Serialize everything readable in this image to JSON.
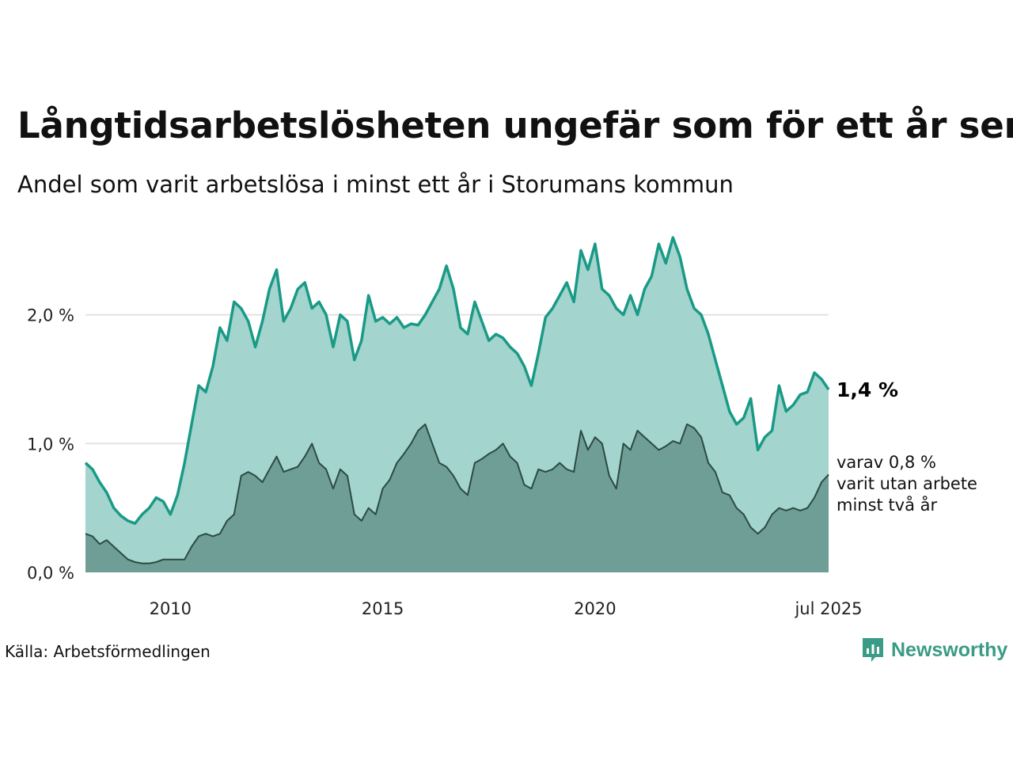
{
  "title": "Långtidsarbetslösheten ungefär som för ett år sen",
  "subtitle": "Andel som varit arbetslösa i minst ett år i Storumans kommun",
  "source": "Källa: Arbetsförmedlingen",
  "brand": {
    "name": "Newsworthy",
    "icon": "newsworthy-logo-icon"
  },
  "colors": {
    "main_line": "#1a9a86",
    "main_fill": "#a3d4ce",
    "sub_line": "#2c4a44",
    "sub_fill": "#6f9e96",
    "grid": "#e2e2e2"
  },
  "chart_data": {
    "type": "area",
    "x_start": "2008-01",
    "x_end": "2025-07",
    "x_ticks": [
      {
        "x": "2010-01",
        "label": "2010"
      },
      {
        "x": "2015-01",
        "label": "2015"
      },
      {
        "x": "2020-01",
        "label": "2020"
      },
      {
        "x": "2025-07",
        "label": "jul 2025"
      }
    ],
    "y_ticks": [
      {
        "y": 0.0,
        "label": "0,0 %"
      },
      {
        "y": 1.0,
        "label": "1,0 %"
      },
      {
        "y": 2.0,
        "label": "2,0 %"
      }
    ],
    "ylim": [
      0,
      2.6
    ],
    "grid": true,
    "end_label": "1,4 %",
    "sub_label_lines": [
      "varav 0,8 %",
      "varit utan arbete",
      "minst två år"
    ],
    "series": [
      {
        "key": "minst_ett_ar",
        "points": [
          [
            "2008-01",
            0.85
          ],
          [
            "2008-03",
            0.8
          ],
          [
            "2008-05",
            0.7
          ],
          [
            "2008-07",
            0.62
          ],
          [
            "2008-09",
            0.5
          ],
          [
            "2008-11",
            0.44
          ],
          [
            "2009-01",
            0.4
          ],
          [
            "2009-03",
            0.38
          ],
          [
            "2009-05",
            0.45
          ],
          [
            "2009-07",
            0.5
          ],
          [
            "2009-09",
            0.58
          ],
          [
            "2009-11",
            0.55
          ],
          [
            "2010-01",
            0.45
          ],
          [
            "2010-03",
            0.6
          ],
          [
            "2010-05",
            0.85
          ],
          [
            "2010-07",
            1.15
          ],
          [
            "2010-09",
            1.45
          ],
          [
            "2010-11",
            1.4
          ],
          [
            "2011-01",
            1.6
          ],
          [
            "2011-03",
            1.9
          ],
          [
            "2011-05",
            1.8
          ],
          [
            "2011-07",
            2.1
          ],
          [
            "2011-09",
            2.05
          ],
          [
            "2011-11",
            1.95
          ],
          [
            "2012-01",
            1.75
          ],
          [
            "2012-03",
            1.95
          ],
          [
            "2012-05",
            2.2
          ],
          [
            "2012-07",
            2.35
          ],
          [
            "2012-09",
            1.95
          ],
          [
            "2012-11",
            2.05
          ],
          [
            "2013-01",
            2.2
          ],
          [
            "2013-03",
            2.25
          ],
          [
            "2013-05",
            2.05
          ],
          [
            "2013-07",
            2.1
          ],
          [
            "2013-09",
            2.0
          ],
          [
            "2013-11",
            1.75
          ],
          [
            "2014-01",
            2.0
          ],
          [
            "2014-03",
            1.95
          ],
          [
            "2014-05",
            1.65
          ],
          [
            "2014-07",
            1.8
          ],
          [
            "2014-09",
            2.15
          ],
          [
            "2014-11",
            1.95
          ],
          [
            "2015-01",
            1.98
          ],
          [
            "2015-03",
            1.93
          ],
          [
            "2015-05",
            1.98
          ],
          [
            "2015-07",
            1.9
          ],
          [
            "2015-09",
            1.93
          ],
          [
            "2015-11",
            1.92
          ],
          [
            "2016-01",
            2.0
          ],
          [
            "2016-03",
            2.1
          ],
          [
            "2016-05",
            2.2
          ],
          [
            "2016-07",
            2.38
          ],
          [
            "2016-09",
            2.2
          ],
          [
            "2016-11",
            1.9
          ],
          [
            "2017-01",
            1.85
          ],
          [
            "2017-03",
            2.1
          ],
          [
            "2017-05",
            1.95
          ],
          [
            "2017-07",
            1.8
          ],
          [
            "2017-09",
            1.85
          ],
          [
            "2017-11",
            1.82
          ],
          [
            "2018-01",
            1.75
          ],
          [
            "2018-03",
            1.7
          ],
          [
            "2018-05",
            1.6
          ],
          [
            "2018-07",
            1.45
          ],
          [
            "2018-09",
            1.7
          ],
          [
            "2018-11",
            1.98
          ],
          [
            "2019-01",
            2.05
          ],
          [
            "2019-03",
            2.15
          ],
          [
            "2019-05",
            2.25
          ],
          [
            "2019-07",
            2.1
          ],
          [
            "2019-09",
            2.5
          ],
          [
            "2019-11",
            2.35
          ],
          [
            "2020-01",
            2.55
          ],
          [
            "2020-03",
            2.2
          ],
          [
            "2020-05",
            2.15
          ],
          [
            "2020-07",
            2.05
          ],
          [
            "2020-09",
            2.0
          ],
          [
            "2020-11",
            2.15
          ],
          [
            "2021-01",
            2.0
          ],
          [
            "2021-03",
            2.2
          ],
          [
            "2021-05",
            2.3
          ],
          [
            "2021-07",
            2.55
          ],
          [
            "2021-09",
            2.4
          ],
          [
            "2021-11",
            2.6
          ],
          [
            "2022-01",
            2.45
          ],
          [
            "2022-03",
            2.2
          ],
          [
            "2022-05",
            2.05
          ],
          [
            "2022-07",
            2.0
          ],
          [
            "2022-09",
            1.85
          ],
          [
            "2022-11",
            1.65
          ],
          [
            "2023-01",
            1.45
          ],
          [
            "2023-03",
            1.25
          ],
          [
            "2023-05",
            1.15
          ],
          [
            "2023-07",
            1.2
          ],
          [
            "2023-09",
            1.35
          ],
          [
            "2023-11",
            0.95
          ],
          [
            "2024-01",
            1.05
          ],
          [
            "2024-03",
            1.1
          ],
          [
            "2024-05",
            1.45
          ],
          [
            "2024-07",
            1.25
          ],
          [
            "2024-09",
            1.3
          ],
          [
            "2024-11",
            1.38
          ],
          [
            "2025-01",
            1.4
          ],
          [
            "2025-03",
            1.55
          ],
          [
            "2025-05",
            1.5
          ],
          [
            "2025-07",
            1.42
          ]
        ]
      },
      {
        "key": "minst_tva_ar",
        "points": [
          [
            "2008-01",
            0.3
          ],
          [
            "2008-03",
            0.28
          ],
          [
            "2008-05",
            0.22
          ],
          [
            "2008-07",
            0.25
          ],
          [
            "2008-09",
            0.2
          ],
          [
            "2008-11",
            0.15
          ],
          [
            "2009-01",
            0.1
          ],
          [
            "2009-03",
            0.08
          ],
          [
            "2009-05",
            0.07
          ],
          [
            "2009-07",
            0.07
          ],
          [
            "2009-09",
            0.08
          ],
          [
            "2009-11",
            0.1
          ],
          [
            "2010-01",
            0.1
          ],
          [
            "2010-03",
            0.1
          ],
          [
            "2010-05",
            0.1
          ],
          [
            "2010-07",
            0.2
          ],
          [
            "2010-09",
            0.28
          ],
          [
            "2010-11",
            0.3
          ],
          [
            "2011-01",
            0.28
          ],
          [
            "2011-03",
            0.3
          ],
          [
            "2011-05",
            0.4
          ],
          [
            "2011-07",
            0.45
          ],
          [
            "2011-09",
            0.75
          ],
          [
            "2011-11",
            0.78
          ],
          [
            "2012-01",
            0.75
          ],
          [
            "2012-03",
            0.7
          ],
          [
            "2012-05",
            0.8
          ],
          [
            "2012-07",
            0.9
          ],
          [
            "2012-09",
            0.78
          ],
          [
            "2012-11",
            0.8
          ],
          [
            "2013-01",
            0.82
          ],
          [
            "2013-03",
            0.9
          ],
          [
            "2013-05",
            1.0
          ],
          [
            "2013-07",
            0.85
          ],
          [
            "2013-09",
            0.8
          ],
          [
            "2013-11",
            0.65
          ],
          [
            "2014-01",
            0.8
          ],
          [
            "2014-03",
            0.75
          ],
          [
            "2014-05",
            0.45
          ],
          [
            "2014-07",
            0.4
          ],
          [
            "2014-09",
            0.5
          ],
          [
            "2014-11",
            0.45
          ],
          [
            "2015-01",
            0.65
          ],
          [
            "2015-03",
            0.72
          ],
          [
            "2015-05",
            0.85
          ],
          [
            "2015-07",
            0.92
          ],
          [
            "2015-09",
            1.0
          ],
          [
            "2015-11",
            1.1
          ],
          [
            "2016-01",
            1.15
          ],
          [
            "2016-03",
            1.0
          ],
          [
            "2016-05",
            0.85
          ],
          [
            "2016-07",
            0.82
          ],
          [
            "2016-09",
            0.75
          ],
          [
            "2016-11",
            0.65
          ],
          [
            "2017-01",
            0.6
          ],
          [
            "2017-03",
            0.85
          ],
          [
            "2017-05",
            0.88
          ],
          [
            "2017-07",
            0.92
          ],
          [
            "2017-09",
            0.95
          ],
          [
            "2017-11",
            1.0
          ],
          [
            "2018-01",
            0.9
          ],
          [
            "2018-03",
            0.85
          ],
          [
            "2018-05",
            0.68
          ],
          [
            "2018-07",
            0.65
          ],
          [
            "2018-09",
            0.8
          ],
          [
            "2018-11",
            0.78
          ],
          [
            "2019-01",
            0.8
          ],
          [
            "2019-03",
            0.85
          ],
          [
            "2019-05",
            0.8
          ],
          [
            "2019-07",
            0.78
          ],
          [
            "2019-09",
            1.1
          ],
          [
            "2019-11",
            0.95
          ],
          [
            "2020-01",
            1.05
          ],
          [
            "2020-03",
            1.0
          ],
          [
            "2020-05",
            0.75
          ],
          [
            "2020-07",
            0.65
          ],
          [
            "2020-09",
            1.0
          ],
          [
            "2020-11",
            0.95
          ],
          [
            "2021-01",
            1.1
          ],
          [
            "2021-03",
            1.05
          ],
          [
            "2021-05",
            1.0
          ],
          [
            "2021-07",
            0.95
          ],
          [
            "2021-09",
            0.98
          ],
          [
            "2021-11",
            1.02
          ],
          [
            "2022-01",
            1.0
          ],
          [
            "2022-03",
            1.15
          ],
          [
            "2022-05",
            1.12
          ],
          [
            "2022-07",
            1.05
          ],
          [
            "2022-09",
            0.85
          ],
          [
            "2022-11",
            0.78
          ],
          [
            "2023-01",
            0.62
          ],
          [
            "2023-03",
            0.6
          ],
          [
            "2023-05",
            0.5
          ],
          [
            "2023-07",
            0.45
          ],
          [
            "2023-09",
            0.35
          ],
          [
            "2023-11",
            0.3
          ],
          [
            "2024-01",
            0.35
          ],
          [
            "2024-03",
            0.45
          ],
          [
            "2024-05",
            0.5
          ],
          [
            "2024-07",
            0.48
          ],
          [
            "2024-09",
            0.5
          ],
          [
            "2024-11",
            0.48
          ],
          [
            "2025-01",
            0.5
          ],
          [
            "2025-03",
            0.58
          ],
          [
            "2025-05",
            0.7
          ],
          [
            "2025-07",
            0.76
          ]
        ]
      }
    ]
  }
}
